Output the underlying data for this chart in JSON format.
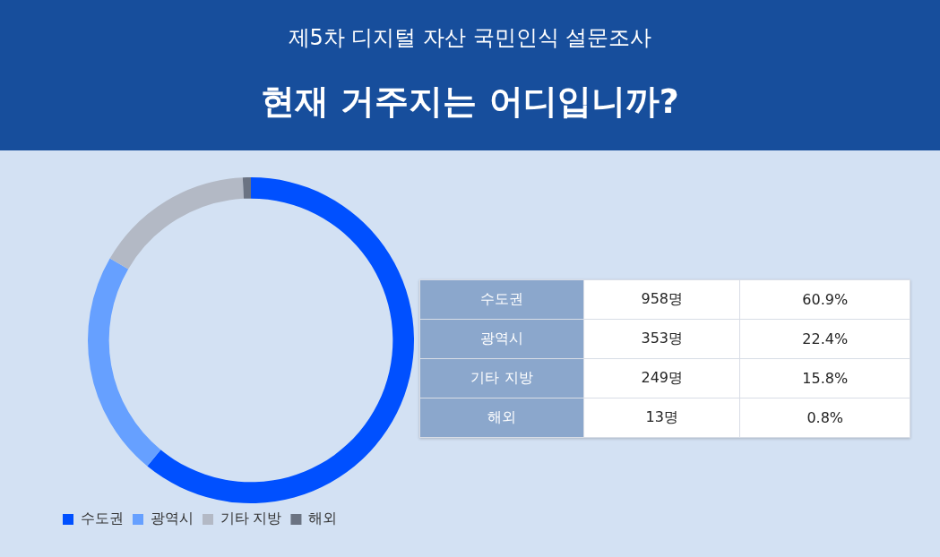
{
  "chart_data": [
    {
      "type": "donut",
      "subtitle": "제5차 디지털 자산 국민인식 설문조사",
      "title": "현재 거주지는 어디입니까?",
      "categories": [
        "수도권",
        "광역시",
        "기타 지방",
        "해외"
      ],
      "values": [
        60.9,
        22.4,
        15.8,
        0.8
      ],
      "colors": [
        "#0050ff",
        "#66a0ff",
        "#b3b9c5",
        "#6b7382"
      ],
      "legend": "bottom left"
    },
    {
      "type": "other",
      "annotations": [
        "수도권",
        "958명",
        "60.9%",
        "광역시",
        "353명",
        "22.4%",
        "기타 지방",
        "249명",
        "15.8%",
        "해외",
        "13명",
        "0.8%"
      ]
    }
  ]
}
